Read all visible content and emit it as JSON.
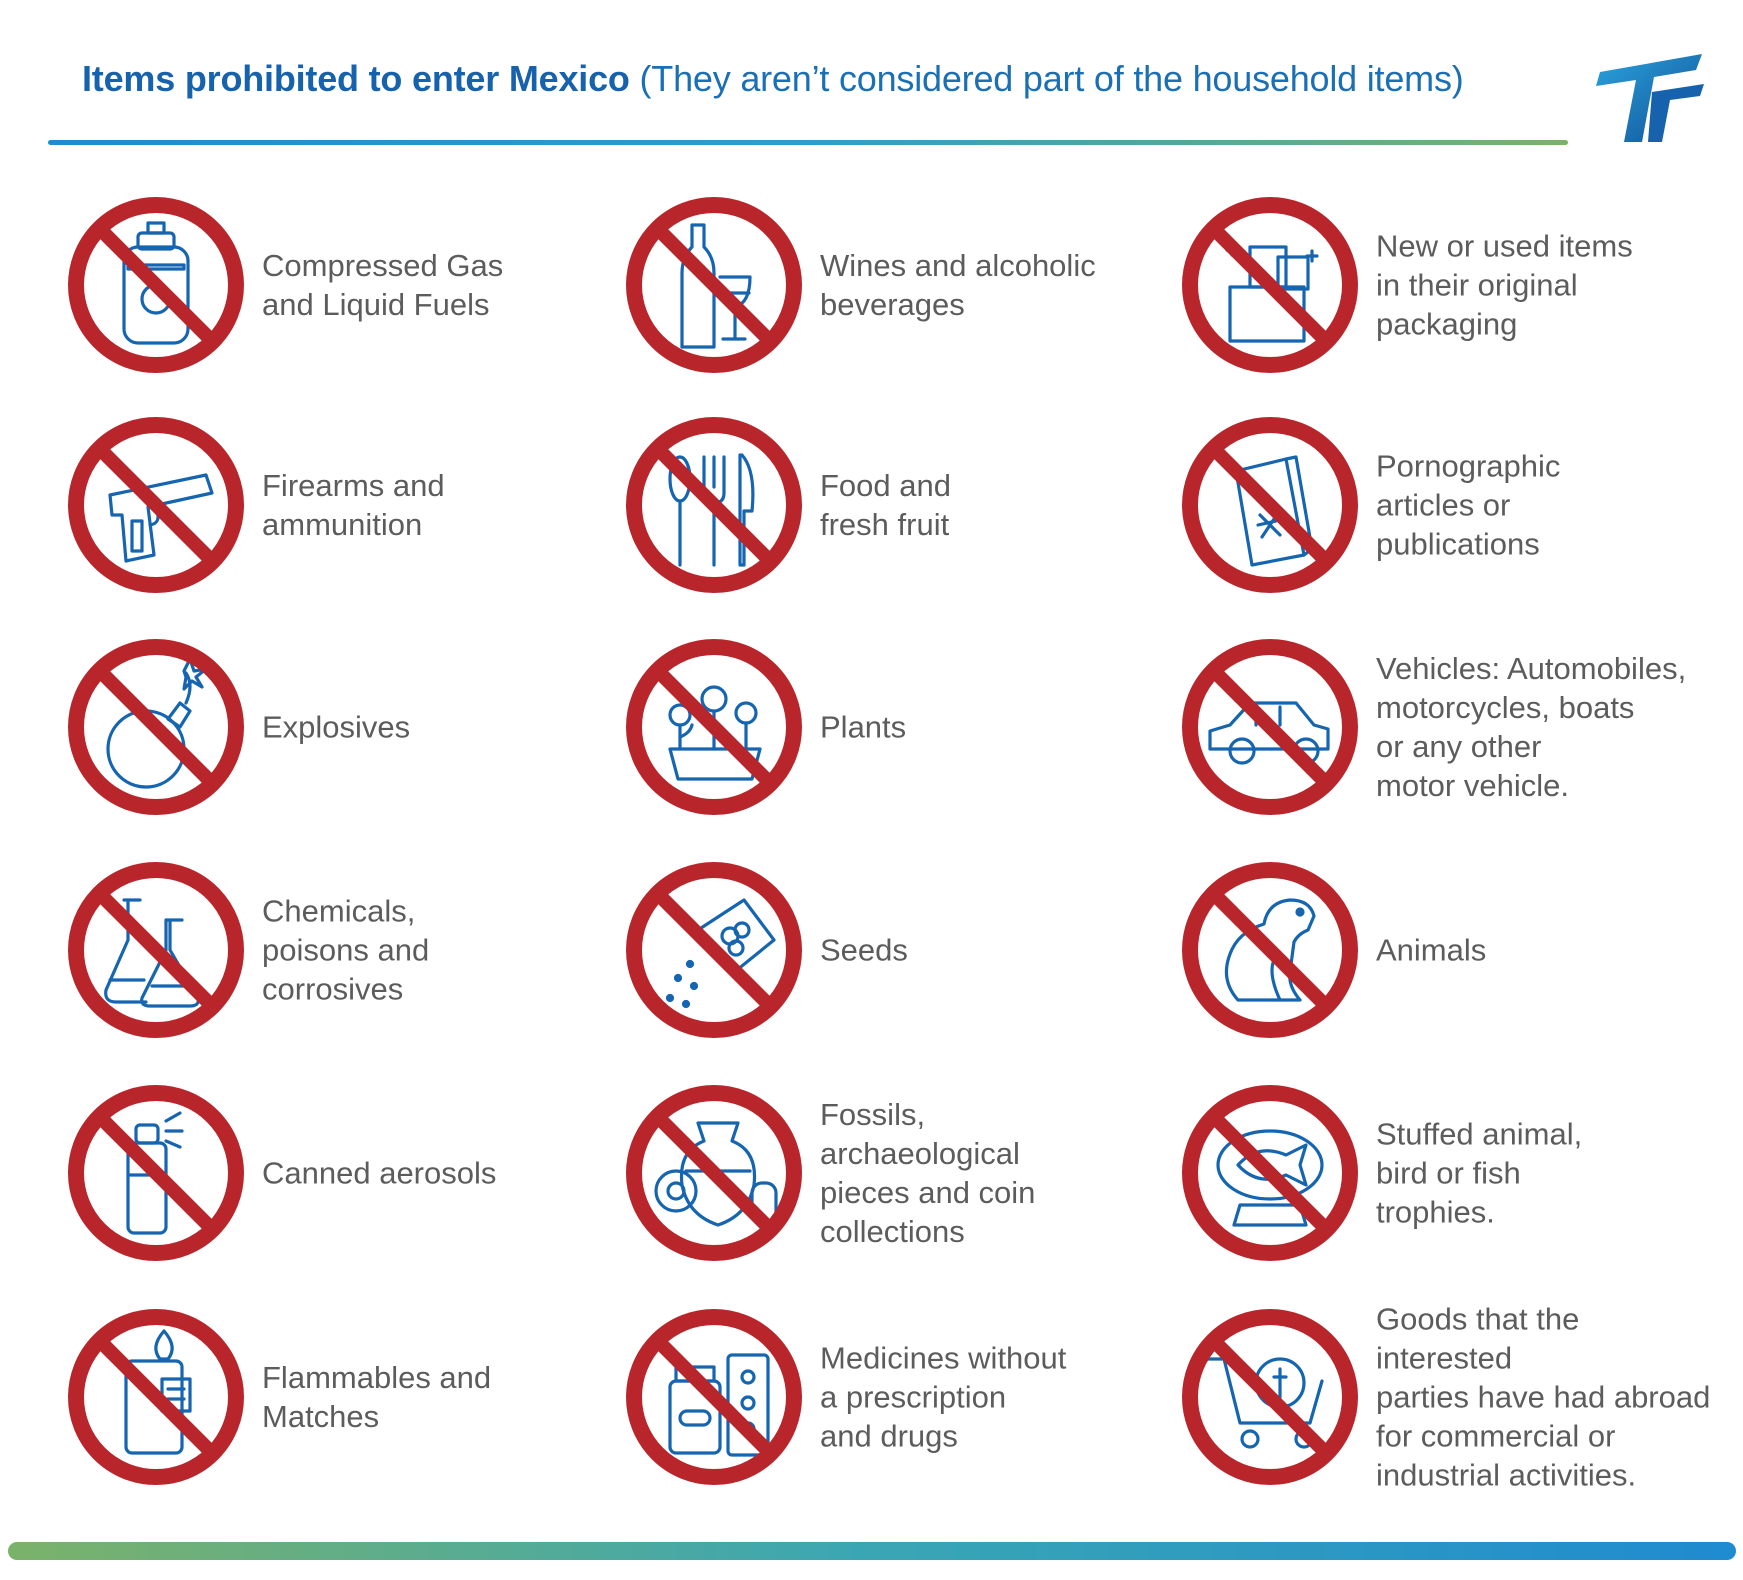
{
  "header": {
    "title_bold": "Items prohibited to enter Mexico",
    "title_rest": "(They aren’t considered part of the household items)",
    "logo_icon": "tf-logo-icon"
  },
  "colors": {
    "prohibit_red": "#b8262b",
    "icon_blue": "#1665b0",
    "text_gray": "#5c5c5c"
  },
  "items": [
    {
      "icon": "gas-cylinder-icon",
      "lines": [
        "Compressed Gas",
        "and Liquid Fuels"
      ]
    },
    {
      "icon": "wine-bottle-icon",
      "lines": [
        "Wines and alcoholic",
        "beverages"
      ]
    },
    {
      "icon": "packages-icon",
      "lines": [
        "New or used items",
        "in their original",
        "packaging"
      ]
    },
    {
      "icon": "pistol-icon",
      "lines": [
        "Firearms and",
        "ammunition"
      ]
    },
    {
      "icon": "cutlery-icon",
      "lines": [
        "Food and",
        "fresh fruit"
      ]
    },
    {
      "icon": "magazine-icon",
      "lines": [
        "Pornographic",
        "articles or",
        "publications"
      ]
    },
    {
      "icon": "bomb-icon",
      "lines": [
        "Explosives"
      ]
    },
    {
      "icon": "flower-pot-icon",
      "lines": [
        "Plants"
      ]
    },
    {
      "icon": "car-icon",
      "lines": [
        "Vehicles: Automobiles,",
        "motorcycles, boats",
        "or any other",
        "motor vehicle."
      ]
    },
    {
      "icon": "flasks-icon",
      "lines": [
        "Chemicals,",
        "poisons and",
        "corrosives"
      ]
    },
    {
      "icon": "seed-packet-icon",
      "lines": [
        "Seeds"
      ]
    },
    {
      "icon": "dog-icon",
      "lines": [
        "Animals"
      ]
    },
    {
      "icon": "aerosol-can-icon",
      "lines": [
        "Canned aerosols"
      ]
    },
    {
      "icon": "vase-fossil-coins-icon",
      "lines": [
        "Fossils,",
        "archaeological",
        "pieces and coin",
        "collections"
      ]
    },
    {
      "icon": "fish-trophy-icon",
      "lines": [
        "Stuffed animal,",
        "bird or fish",
        "trophies."
      ]
    },
    {
      "icon": "lighter-matches-icon",
      "lines": [
        "Flammables and",
        "Matches"
      ]
    },
    {
      "icon": "medicine-icon",
      "lines": [
        "Medicines without",
        "a prescription",
        "and drugs"
      ]
    },
    {
      "icon": "shopping-cart-icon",
      "lines": [
        "Goods that the interested",
        "parties have had abroad",
        "for commercial or",
        "industrial activities."
      ]
    }
  ]
}
